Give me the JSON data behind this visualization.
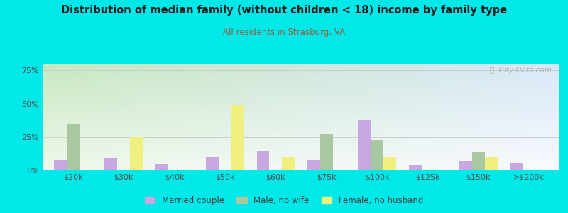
{
  "categories": [
    "$20k",
    "$30k",
    "$40k",
    "$50k",
    "$60k",
    "$75k",
    "$100k",
    "$125k",
    "$150k",
    ">$200k"
  ],
  "married_couple": [
    8,
    9,
    5,
    10,
    15,
    8,
    38,
    4,
    7,
    6
  ],
  "male_no_wife": [
    35,
    0,
    0,
    0,
    0,
    27,
    23,
    0,
    14,
    0
  ],
  "female_no_husb": [
    0,
    25,
    0,
    49,
    10,
    0,
    10,
    0,
    10,
    0
  ],
  "married_color": "#c8a8e0",
  "male_color": "#a8c8a0",
  "female_color": "#f0f080",
  "title": "Distribution of median family (without children < 18) income by family type",
  "subtitle": "All residents in Strasburg, VA",
  "title_color": "#202020",
  "subtitle_color": "#8B6344",
  "bg_color": "#00e8e8",
  "plot_bg_left_top": "#d8ecd0",
  "plot_bg_left_bottom": "#f0f8ec",
  "plot_bg_right_top": "#e8eef8",
  "plot_bg_right_bottom": "#f8faff",
  "yticks": [
    0,
    25,
    50,
    75
  ],
  "ylim": [
    0,
    80
  ],
  "legend_labels": [
    "Married couple",
    "Male, no wife",
    "Female, no husband"
  ],
  "watermark": "ⓘ  City-Data.com"
}
